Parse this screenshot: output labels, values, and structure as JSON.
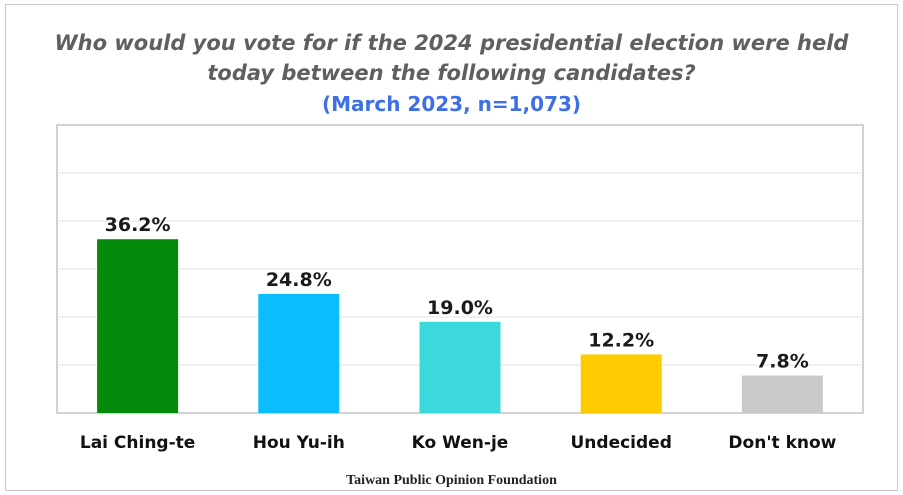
{
  "chart_data": {
    "type": "bar",
    "title": "Who would you vote for if the 2024 presidential election were held today between the following candidates?",
    "title_lines": [
      "Who would you vote for if the 2024 presidential election were held",
      "today between the following candidates?"
    ],
    "subtitle": "(March 2023, n=1,073)",
    "source": "Taiwan Public Opinion Foundation",
    "categories": [
      "Lai Ching-te",
      "Hou Yu-ih",
      "Ko Wen-je",
      "Undecided",
      "Don't know"
    ],
    "values": [
      36.2,
      24.8,
      19.0,
      12.2,
      7.8
    ],
    "value_labels": [
      "36.2%",
      "24.8%",
      "19.0%",
      "12.2%",
      "7.8%"
    ],
    "colors": [
      "#058a0c",
      "#0bbcff",
      "#3bd9dc",
      "#fecb00",
      "#c9c9c9"
    ],
    "ylim": [
      0,
      60
    ],
    "gridlines": true,
    "xlabel": "",
    "ylabel": ""
  }
}
